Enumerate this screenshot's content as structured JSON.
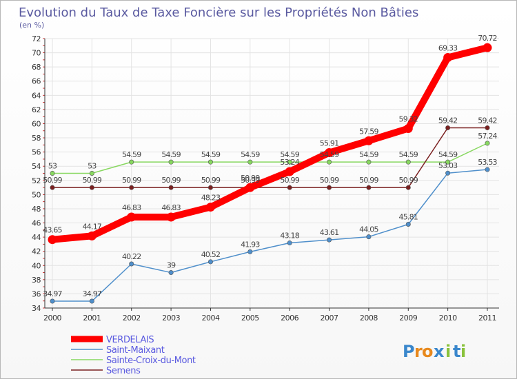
{
  "chart_data": {
    "type": "line",
    "title": "Evolution du Taux de Taxe Foncière sur les Propriétés Non Bâties",
    "subtitle": "(en %)",
    "x": [
      "2000",
      "2001",
      "2002",
      "2003",
      "2004",
      "2005",
      "2006",
      "2007",
      "2008",
      "2009",
      "2010",
      "2011"
    ],
    "yticks": [
      "34",
      "36",
      "38",
      "40",
      "42",
      "44",
      "46",
      "48",
      "50",
      "52",
      "54",
      "56",
      "58",
      "60",
      "62",
      "64",
      "66",
      "68",
      "70",
      "72"
    ],
    "ylim": [
      34,
      72
    ],
    "grid": true,
    "legend_position": "bottom-left",
    "series": [
      {
        "name": "VERDELAIS",
        "color": "#ff0000",
        "values": [
          43.65,
          44.17,
          46.83,
          46.83,
          48.23,
          50.99,
          53.24,
          55.91,
          57.59,
          59.32,
          69.33,
          70.72
        ],
        "labels": [
          "43.65",
          "44.17",
          "46.83",
          "46.83",
          "48.23",
          "50.99",
          "53.24",
          "55.91",
          "57.59",
          "59.32",
          "69.33",
          "70.72"
        ]
      },
      {
        "name": "Saint-Maixant",
        "color": "#4f8fcb",
        "values": [
          34.97,
          34.97,
          40.22,
          39,
          40.52,
          41.93,
          43.18,
          43.61,
          44.05,
          45.81,
          53.03,
          53.53
        ],
        "labels": [
          "34.97",
          "34.97",
          "40.22",
          "39",
          "40.52",
          "41.93",
          "43.18",
          "43.61",
          "44.05",
          "45.81",
          "53.03",
          "53.53"
        ]
      },
      {
        "name": "Sainte-Croix-du-Mont",
        "color": "#88d860",
        "values": [
          53,
          53,
          54.59,
          54.59,
          54.59,
          54.59,
          54.59,
          54.59,
          54.59,
          54.59,
          54.59,
          57.24
        ],
        "labels": [
          "53",
          "53",
          "54.59",
          "54.59",
          "54.59",
          "54.59",
          "54.59",
          "54.59",
          "54.59",
          "54.59",
          "54.59",
          "57.24"
        ]
      },
      {
        "name": "Semens",
        "color": "#7a2020",
        "values": [
          50.99,
          50.99,
          50.99,
          50.99,
          50.99,
          50.99,
          50.99,
          50.99,
          50.99,
          50.99,
          59.42,
          59.42
        ],
        "labels": [
          "50.99",
          "50.99",
          "50.99",
          "50.99",
          "50.99",
          "50.99",
          "50.99",
          "50.99",
          "50.99",
          "50.99",
          "59.42",
          "59.42"
        ]
      }
    ]
  },
  "logo": {
    "text": "Proxiti",
    "letters": [
      "P",
      "r",
      "o",
      "x",
      "i",
      "t",
      "i"
    ],
    "colors": [
      "#3a87cc",
      "#e8891d",
      "#e8891d",
      "#3a87cc",
      "#8ac23c",
      "#3a87cc",
      "#8ac23c"
    ]
  }
}
